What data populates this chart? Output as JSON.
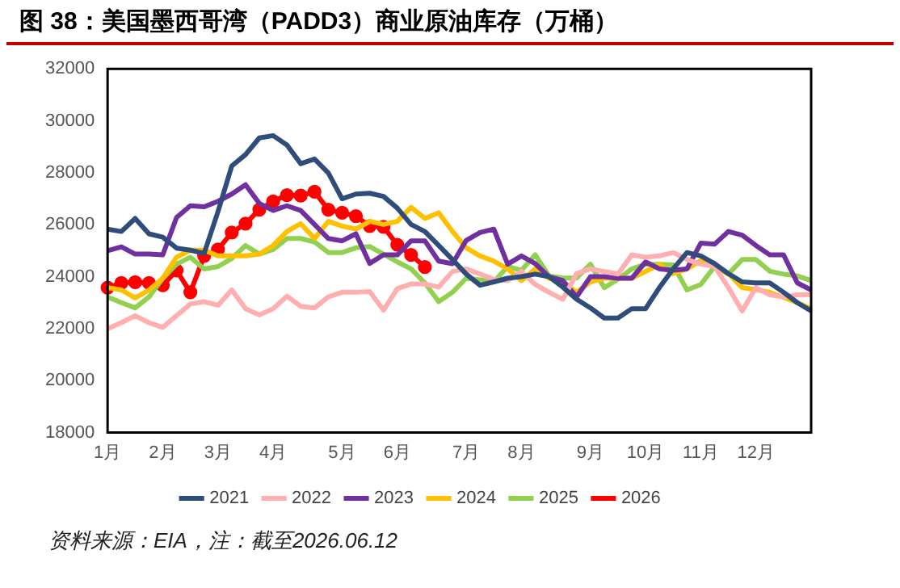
{
  "chart_data": {
    "type": "line",
    "title": "图 38：美国墨西哥湾（PADD3）商业原油库存（万桶）",
    "annotations": [
      "资料来源：EIA，注：截至2026.06.12"
    ],
    "categories": [
      "1月",
      null,
      null,
      null,
      "2月",
      null,
      null,
      null,
      "3月",
      null,
      null,
      null,
      "4月",
      null,
      null,
      null,
      null,
      "5月",
      null,
      null,
      null,
      "6月",
      null,
      null,
      null,
      null,
      "7月",
      null,
      null,
      null,
      "8月",
      null,
      null,
      null,
      null,
      "9月",
      null,
      null,
      null,
      "10月",
      null,
      null,
      null,
      "11月",
      null,
      null,
      null,
      "12月",
      null,
      null,
      null,
      null
    ],
    "ylim": [
      18000,
      32000
    ],
    "yticks": [
      18000,
      20000,
      22000,
      24000,
      26000,
      28000,
      30000,
      32000
    ],
    "grid": false,
    "legend": "bottom",
    "line_style": "solid",
    "series": [
      {
        "name": "2021",
        "color": "#2e4d7b",
        "marker": "none",
        "values": [
          25830,
          25740,
          26240,
          25650,
          25520,
          25100,
          25020,
          24900,
          26500,
          28260,
          28700,
          29340,
          29430,
          29070,
          28350,
          28530,
          27990,
          27000,
          27180,
          27210,
          27090,
          26640,
          26010,
          25740,
          25200,
          24660,
          24100,
          23670,
          23800,
          23940,
          24000,
          24100,
          24000,
          23600,
          23130,
          22800,
          22410,
          22410,
          22770,
          22770,
          23580,
          24300,
          24930,
          24800,
          24500,
          24120,
          23800,
          23760,
          23760,
          23400,
          23000,
          22680
        ]
      },
      {
        "name": "2022",
        "color": "#ffafaf",
        "marker": "none",
        "values": [
          22000,
          22230,
          22500,
          22230,
          22050,
          22500,
          22950,
          23040,
          22900,
          23490,
          22770,
          22530,
          22770,
          23250,
          22860,
          22800,
          23220,
          23400,
          23400,
          23430,
          22710,
          23540,
          23720,
          23720,
          23600,
          24200,
          24300,
          24100,
          23900,
          23850,
          24200,
          23700,
          23400,
          23130,
          24120,
          24300,
          24200,
          24100,
          24840,
          24750,
          24800,
          24930,
          24660,
          24480,
          24400,
          23580,
          22680,
          23580,
          23300,
          23220,
          23300,
          23310
        ]
      },
      {
        "name": "2023",
        "color": "#7030a0",
        "marker": "none",
        "values": [
          25000,
          25150,
          24870,
          24870,
          24840,
          26280,
          26730,
          26690,
          26900,
          27180,
          27540,
          26820,
          26550,
          26730,
          26550,
          26010,
          25470,
          25380,
          25650,
          24510,
          24840,
          24840,
          25380,
          25380,
          24600,
          24500,
          25400,
          25700,
          25830,
          24480,
          24800,
          24500,
          24000,
          23850,
          23220,
          24000,
          24000,
          23940,
          23940,
          24570,
          24300,
          24250,
          24300,
          25290,
          25250,
          25740,
          25600,
          25200,
          24840,
          24840,
          23760,
          23490
        ]
      },
      {
        "name": "2024",
        "color": "#ffc000",
        "marker": "none",
        "values": [
          23580,
          23490,
          23180,
          23490,
          23940,
          24750,
          25020,
          25020,
          24800,
          24800,
          24800,
          24870,
          25200,
          25740,
          26040,
          25470,
          26130,
          25950,
          25830,
          26130,
          26010,
          26130,
          26670,
          26240,
          26460,
          25740,
          25110,
          24800,
          24600,
          24300,
          23850,
          24300,
          23940,
          23800,
          23400,
          23800,
          23940,
          23940,
          23940,
          24200,
          24480,
          24120,
          24300,
          24620,
          24400,
          24120,
          23580,
          23500,
          23400,
          23200,
          23000,
          22770
        ]
      },
      {
        "name": "2025",
        "color": "#92d050",
        "marker": "none",
        "values": [
          23220,
          23000,
          22800,
          23220,
          23940,
          24480,
          24750,
          24300,
          24390,
          24700,
          25200,
          24870,
          25050,
          25470,
          25470,
          25340,
          24930,
          24930,
          25110,
          25160,
          24870,
          24570,
          24300,
          23760,
          23040,
          23400,
          23940,
          23880,
          23800,
          24390,
          24250,
          24840,
          24030,
          23950,
          23950,
          24480,
          23580,
          23900,
          24300,
          24480,
          24480,
          24450,
          23490,
          23700,
          24390,
          24100,
          24660,
          24660,
          24210,
          24100,
          24030,
          23850
        ]
      },
      {
        "name": "2026",
        "color": "#ff0000",
        "marker": "circle",
        "values": [
          23580,
          23760,
          23790,
          23760,
          23670,
          24240,
          23400,
          24800,
          25050,
          25700,
          26040,
          26580,
          26900,
          27140,
          27120,
          27270,
          26580,
          26460,
          26330,
          25950,
          25920,
          25230,
          24840,
          24370,
          null,
          null,
          null,
          null,
          null,
          null,
          null,
          null,
          null,
          null,
          null,
          null,
          null,
          null,
          null,
          null,
          null,
          null,
          null,
          null,
          null,
          null,
          null,
          null,
          null,
          null,
          null,
          null
        ]
      }
    ]
  }
}
